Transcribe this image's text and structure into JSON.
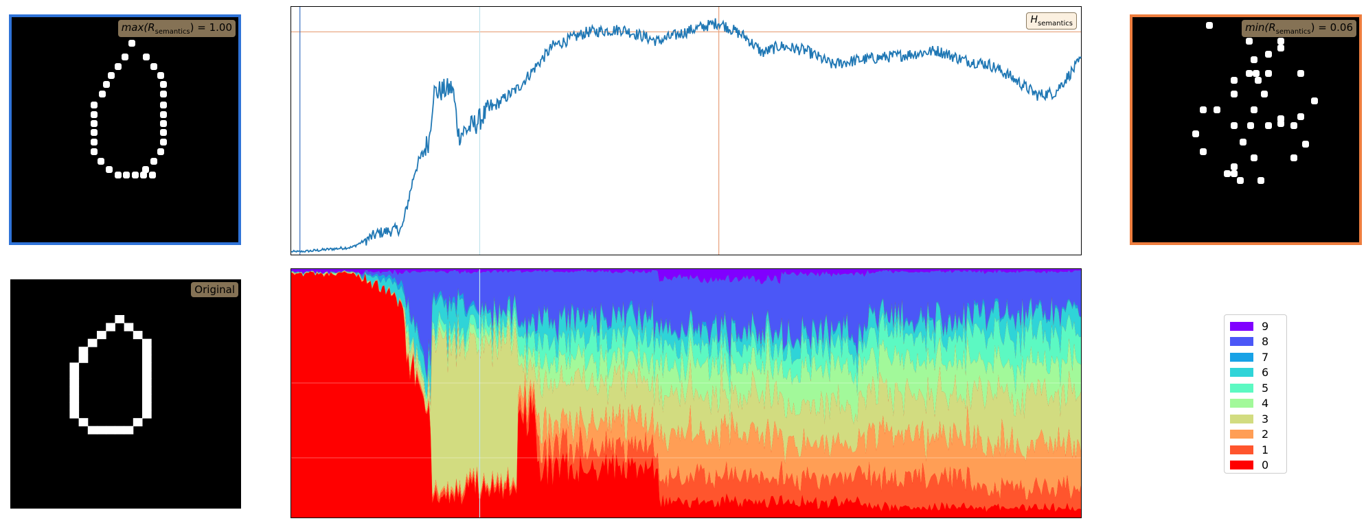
{
  "panels": {
    "max_badge": {
      "prefix": "max(R",
      "sub": "semantics",
      "suffix": ") = 1.00"
    },
    "min_badge": {
      "prefix": "min(R",
      "sub": "semantics",
      "suffix": ") = 0.06"
    },
    "original_badge": "Original",
    "entropy_badge": {
      "main": "H",
      "sub": "semantics"
    },
    "max_border_color": "#2f73d8",
    "min_border_color": "#ee7d3e"
  },
  "chart_data": [
    {
      "type": "line",
      "title": "",
      "series": [
        {
          "name": "",
          "color": "#1f77b4"
        }
      ],
      "trend_points": [
        [
          0,
          0.0
        ],
        [
          10,
          0.0
        ],
        [
          70,
          0.02
        ],
        [
          100,
          0.08
        ],
        [
          127,
          0.1
        ],
        [
          142,
          0.35
        ],
        [
          158,
          0.48
        ],
        [
          163,
          0.68
        ],
        [
          185,
          0.7
        ],
        [
          192,
          0.5
        ],
        [
          212,
          0.55
        ],
        [
          225,
          0.6
        ],
        [
          260,
          0.7
        ],
        [
          300,
          0.88
        ],
        [
          340,
          0.94
        ],
        [
          380,
          0.95
        ],
        [
          420,
          0.9
        ],
        [
          460,
          0.95
        ],
        [
          490,
          0.98
        ],
        [
          520,
          0.92
        ],
        [
          540,
          0.85
        ],
        [
          560,
          0.88
        ],
        [
          590,
          0.86
        ],
        [
          620,
          0.8
        ],
        [
          650,
          0.82
        ],
        [
          700,
          0.84
        ],
        [
          740,
          0.86
        ],
        [
          770,
          0.82
        ],
        [
          800,
          0.8
        ],
        [
          820,
          0.76
        ],
        [
          855,
          0.67
        ],
        [
          875,
          0.68
        ],
        [
          905,
          0.82
        ]
      ],
      "x_range": [
        0,
        905
      ],
      "y_range": [
        0,
        1
      ],
      "hlines": [
        {
          "y": 0.94,
          "color": "#e8a07a"
        }
      ],
      "vlines": [
        {
          "x": 10,
          "color": "#3a6fc0"
        },
        {
          "x": 216,
          "color": "#bfe3ec"
        },
        {
          "x": 490,
          "color": "#e8a07a"
        }
      ]
    },
    {
      "type": "area",
      "stacked": true,
      "normalized": true,
      "legend": [
        "9",
        "8",
        "7",
        "6",
        "5",
        "4",
        "3",
        "2",
        "1",
        "0"
      ],
      "colors": {
        "9": "#8000ff",
        "8": "#4b57f7",
        "7": "#18a2e6",
        "6": "#2fd4d8",
        "5": "#5cf9c2",
        "4": "#a2f99a",
        "3": "#d2dc80",
        "2": "#ff9e55",
        "1": "#ff552d",
        "0": "#ff0000"
      },
      "x_range": [
        0,
        905
      ],
      "vlines": [
        {
          "x": 216,
          "color": "#bfe3ec"
        }
      ]
    }
  ],
  "legend_order": [
    "9",
    "8",
    "7",
    "6",
    "5",
    "4",
    "3",
    "2",
    "1",
    "0"
  ]
}
